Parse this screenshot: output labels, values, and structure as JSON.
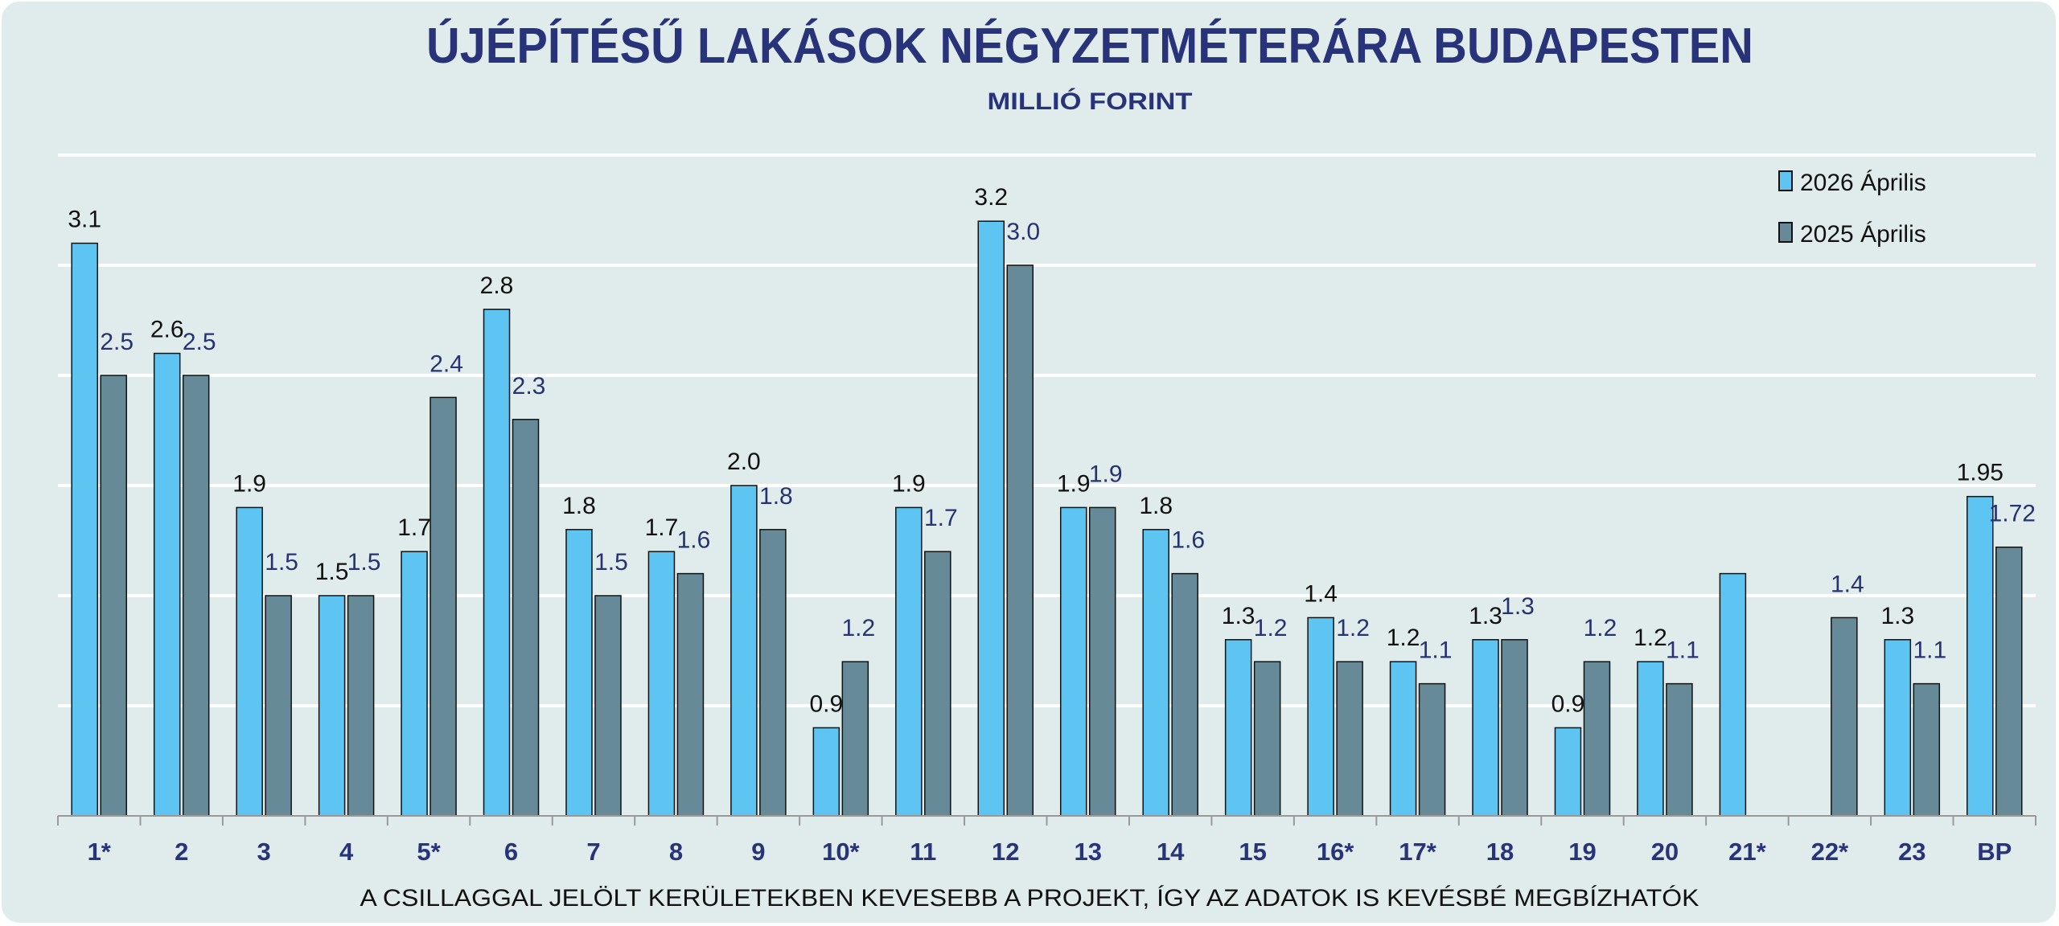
{
  "chart_data": {
    "type": "bar",
    "title": "ÚJÉPÍTÉSŰ LAKÁSOK NÉGYZETMÉTERÁRA BUDAPESTEN",
    "subtitle": "MILLIÓ FORINT",
    "footnote": "A CSILLAGGAL JELÖLT KERÜLETEKBEN KEVESEBB A PROJEKT, ÍGY AZ ADATOK IS KEVÉSBÉ MEGBÍZHATÓK",
    "categories": [
      "1*",
      "2",
      "3",
      "4",
      "5*",
      "6",
      "7",
      "8",
      "9",
      "10*",
      "11",
      "12",
      "13",
      "14",
      "15",
      "16*",
      "17*",
      "18",
      "19",
      "20",
      "21*",
      "22*",
      "23",
      "BP"
    ],
    "series": [
      {
        "name": "2026 Április",
        "color": "#5ec5f2",
        "label_color": "#111111",
        "values": [
          3.1,
          2.6,
          1.9,
          1.5,
          1.7,
          2.8,
          1.8,
          1.7,
          2.0,
          0.9,
          1.9,
          3.2,
          1.9,
          1.8,
          1.3,
          1.4,
          1.2,
          1.3,
          0.9,
          1.2,
          1.6,
          null,
          1.3,
          1.95
        ],
        "labels": [
          "3.1",
          "2.6",
          "1.9",
          "1.5",
          "1.7",
          "2.8",
          "1.8",
          "1.7",
          "2.0",
          "0.9",
          "1.9",
          "3.2",
          "1.9",
          "1.8",
          "1.3",
          "1.4",
          "1.2",
          "1.3",
          "0.9",
          "1.2",
          "",
          "",
          "1.3",
          "1.95"
        ]
      },
      {
        "name": "2025 Április",
        "color": "#668a98",
        "label_color": "#283272",
        "values": [
          2.5,
          2.5,
          1.5,
          1.5,
          2.4,
          2.3,
          1.5,
          1.6,
          1.8,
          1.2,
          1.7,
          3.0,
          1.9,
          1.6,
          1.2,
          1.2,
          1.1,
          1.3,
          1.2,
          1.1,
          null,
          1.4,
          1.1,
          1.72
        ],
        "labels": [
          "2.5",
          "2.5",
          "1.5",
          "1.5",
          "2.4",
          "2.3",
          "1.5",
          "1.6",
          "1.8",
          "1.2",
          "1.7",
          "3.0",
          "1.9",
          "1.6",
          "1.2",
          "1.2",
          "1.1",
          "1.3",
          "1.2",
          "1.1",
          "",
          "1.4",
          "1.1",
          "1.72"
        ]
      }
    ],
    "ylim": [
      0.5,
      3.5
    ],
    "grid": true,
    "y_tick_labels_shown": false,
    "legend": "top-right",
    "title_color": "#28337a",
    "background": "#e0ecec"
  }
}
